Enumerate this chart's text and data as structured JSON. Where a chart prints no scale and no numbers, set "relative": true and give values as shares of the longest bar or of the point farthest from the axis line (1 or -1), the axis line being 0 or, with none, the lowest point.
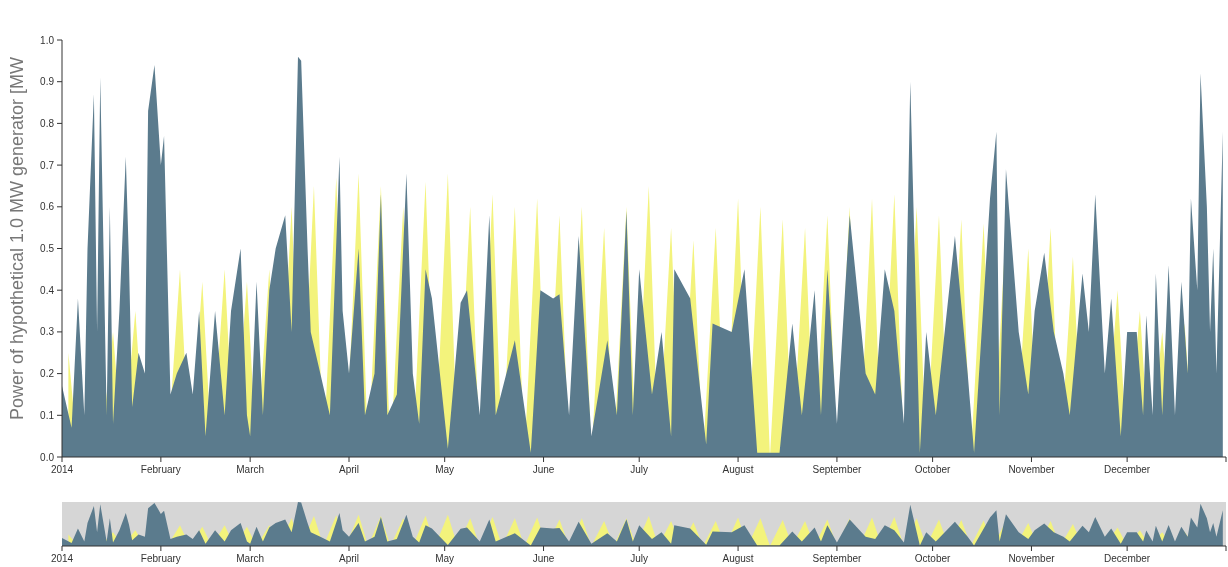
{
  "chart_data": [
    {
      "type": "area",
      "ylabel": "Power of hypothetical 1.0 MW generator [MW",
      "xlim": [
        "2014-01-01",
        "2015-01-01"
      ],
      "xticks": [
        {
          "value": "2014-01-01",
          "label": "2014"
        },
        {
          "value": "2014-02-01",
          "label": "February"
        },
        {
          "value": "2014-03-01",
          "label": "March"
        },
        {
          "value": "2014-04-01",
          "label": "April"
        },
        {
          "value": "2014-05-01",
          "label": "May"
        },
        {
          "value": "2014-06-01",
          "label": "June"
        },
        {
          "value": "2014-07-01",
          "label": "July"
        },
        {
          "value": "2014-08-01",
          "label": "August"
        },
        {
          "value": "2014-09-01",
          "label": "September"
        },
        {
          "value": "2014-10-01",
          "label": "October"
        },
        {
          "value": "2014-11-01",
          "label": "November"
        },
        {
          "value": "2014-12-01",
          "label": "December"
        },
        {
          "value": "2015-01-01",
          "label": null
        }
      ],
      "ylim": [
        0,
        1
      ],
      "yticks": [
        {
          "value": 0,
          "label": "0.0"
        },
        0.1,
        0.2,
        0.3,
        0.4,
        0.5,
        0.6,
        0.7,
        0.8,
        0.9,
        {
          "value": 1,
          "label": "1.0"
        }
      ],
      "series": [
        {
          "color": "#f3f37c",
          "x": [
            "2014-01-03",
            "2014-01-06",
            "2014-01-10",
            "2014-01-13",
            "2014-01-17",
            "2014-01-20",
            "2014-01-24",
            "2014-01-27",
            "2014-01-31",
            "2014-02-03",
            "2014-02-07",
            "2014-02-10",
            "2014-02-14",
            "2014-02-17",
            "2014-02-21",
            "2014-02-24",
            "2014-02-28",
            "2014-03-03",
            "2014-03-07",
            "2014-03-10",
            "2014-03-14",
            "2014-03-17",
            "2014-03-21",
            "2014-03-24",
            "2014-03-28",
            "2014-03-31",
            "2014-04-04",
            "2014-04-07",
            "2014-04-11",
            "2014-04-14",
            "2014-04-18",
            "2014-04-21",
            "2014-04-25",
            "2014-04-28",
            "2014-05-02",
            "2014-05-05",
            "2014-05-09",
            "2014-05-12",
            "2014-05-16",
            "2014-05-19",
            "2014-05-23",
            "2014-05-26",
            "2014-05-30",
            "2014-06-02",
            "2014-06-06",
            "2014-06-09",
            "2014-06-13",
            "2014-06-16",
            "2014-06-20",
            "2014-06-23",
            "2014-06-27",
            "2014-06-30",
            "2014-07-04",
            "2014-07-07",
            "2014-07-11",
            "2014-07-14",
            "2014-07-18",
            "2014-07-21",
            "2014-07-25",
            "2014-07-28",
            "2014-08-01",
            "2014-08-04",
            "2014-08-08",
            "2014-08-11",
            "2014-08-15",
            "2014-08-18",
            "2014-08-22",
            "2014-08-25",
            "2014-08-29",
            "2014-09-01",
            "2014-09-05",
            "2014-09-08",
            "2014-09-12",
            "2014-09-15",
            "2014-09-19",
            "2014-09-22",
            "2014-09-26",
            "2014-09-29",
            "2014-10-03",
            "2014-10-06",
            "2014-10-10",
            "2014-10-13",
            "2014-10-17",
            "2014-10-20",
            "2014-10-24",
            "2014-10-27",
            "2014-10-31",
            "2014-11-03",
            "2014-11-07",
            "2014-11-10",
            "2014-11-14",
            "2014-11-17",
            "2014-11-21",
            "2014-11-24",
            "2014-11-28",
            "2014-12-01",
            "2014-12-05",
            "2014-12-08",
            "2014-12-12",
            "2014-12-15",
            "2014-12-19",
            "2014-12-22"
          ],
          "values": [
            0.25,
            0,
            null,
            0,
            0.3,
            0,
            0.35,
            0,
            null,
            0,
            0.45,
            0,
            0.42,
            0,
            0.45,
            0,
            0.42,
            0,
            0.45,
            0,
            0.6,
            0,
            0.65,
            0,
            0.67,
            0,
            0.68,
            0,
            0.65,
            0,
            0.6,
            0,
            0.66,
            0,
            0.68,
            0,
            0.6,
            0,
            0.63,
            0,
            0.6,
            0,
            0.62,
            0,
            0.58,
            0,
            0.6,
            0,
            0.55,
            0,
            0.6,
            0,
            0.65,
            0,
            0.55,
            0,
            0.52,
            0,
            0.55,
            0,
            0.62,
            0,
            0.6,
            0,
            0.57,
            0,
            0.55,
            0,
            0.58,
            0,
            0.6,
            0,
            0.62,
            0,
            0.63,
            0,
            0.6,
            0,
            0.58,
            0,
            0.57,
            0,
            0.56,
            0,
            0.55,
            0,
            0.5,
            0,
            0.55,
            0,
            0.48,
            0,
            null,
            0,
            0.4,
            0,
            0.35,
            0,
            0.3,
            0,
            0.32,
            0
          ]
        },
        {
          "color": "#5b7b8d",
          "x": [
            "2014-01-01",
            "2014-01-04",
            "2014-01-06",
            "2014-01-08",
            "2014-01-09",
            "2014-01-11",
            "2014-01-12",
            "2014-01-13",
            "2014-01-15",
            "2014-01-16",
            "2014-01-17",
            "2014-01-19",
            "2014-01-21",
            "2014-01-22",
            "2014-01-23",
            "2014-01-25",
            "2014-01-27",
            "2014-01-28",
            "2014-01-30",
            "2014-02-01",
            "2014-02-02",
            "2014-02-04",
            "2014-02-06",
            "2014-02-09",
            "2014-02-11",
            "2014-02-13",
            "2014-02-15",
            "2014-02-18",
            "2014-02-21",
            "2014-02-23",
            "2014-02-26",
            "2014-02-28",
            "2014-03-01",
            "2014-03-03",
            "2014-03-05",
            "2014-03-07",
            "2014-03-09",
            "2014-03-12",
            "2014-03-14",
            "2014-03-16",
            "2014-03-17",
            "2014-03-19",
            "2014-03-20",
            "2014-03-23",
            "2014-03-26",
            "2014-03-29",
            "2014-03-30",
            "2014-04-01",
            "2014-04-04",
            "2014-04-06",
            "2014-04-09",
            "2014-04-11",
            "2014-04-13",
            "2014-04-16",
            "2014-04-19",
            "2014-04-21",
            "2014-04-23",
            "2014-04-25",
            "2014-04-27",
            "2014-05-02",
            "2014-05-06",
            "2014-05-08",
            "2014-05-12",
            "2014-05-15",
            "2014-05-17",
            "2014-05-23",
            "2014-05-28",
            "2014-05-31",
            "2014-06-04",
            "2014-06-06",
            "2014-06-09",
            "2014-06-12",
            "2014-06-16",
            "2014-06-21",
            "2014-06-24",
            "2014-06-27",
            "2014-06-29",
            "2014-07-01",
            "2014-07-05",
            "2014-07-08",
            "2014-07-11",
            "2014-07-12",
            "2014-07-17",
            "2014-07-22",
            "2014-07-24",
            "2014-07-30",
            "2014-08-03",
            "2014-08-07",
            "2014-08-14",
            "2014-08-18",
            "2014-08-21",
            "2014-08-25",
            "2014-08-27",
            "2014-08-29",
            "2014-09-01",
            "2014-09-05",
            "2014-09-10",
            "2014-09-13",
            "2014-09-16",
            "2014-09-19",
            "2014-09-22",
            "2014-09-24",
            "2014-09-25",
            "2014-09-27",
            "2014-09-29",
            "2014-10-02",
            "2014-10-08",
            "2014-10-12",
            "2014-10-14",
            "2014-10-19",
            "2014-10-21",
            "2014-10-22",
            "2014-10-24",
            "2014-10-28",
            "2014-10-31",
            "2014-11-02",
            "2014-11-05",
            "2014-11-08",
            "2014-11-11",
            "2014-11-13",
            "2014-11-17",
            "2014-11-19",
            "2014-11-21",
            "2014-11-24",
            "2014-11-26",
            "2014-11-29",
            "2014-12-01",
            "2014-12-04",
            "2014-12-06",
            "2014-12-07",
            "2014-12-09",
            "2014-12-10",
            "2014-12-12",
            "2014-12-14",
            "2014-12-16",
            "2014-12-18",
            "2014-12-20",
            "2014-12-21",
            "2014-12-23",
            "2014-12-24",
            "2014-12-26",
            "2014-12-27",
            "2014-12-28",
            "2014-12-29",
            "2014-12-31"
          ],
          "values": [
            0.17,
            0.07,
            0.38,
            0.1,
            0.5,
            0.87,
            0.3,
            0.91,
            0.1,
            0.6,
            0.08,
            0.35,
            0.72,
            0.47,
            0.12,
            0.25,
            0.2,
            0.83,
            0.94,
            0.7,
            0.77,
            0.15,
            0.2,
            0.25,
            0.15,
            0.35,
            0.05,
            0.35,
            0.1,
            0.35,
            0.5,
            0.1,
            0.05,
            0.42,
            0.1,
            0.4,
            0.5,
            0.58,
            0.3,
            0.96,
            0.95,
            0.5,
            0.3,
            0.2,
            0.1,
            0.72,
            0.35,
            0.2,
            0.5,
            0.1,
            0.2,
            0.63,
            0.1,
            0.15,
            0.68,
            0.2,
            0.08,
            0.45,
            0.38,
            0.02,
            0.37,
            0.4,
            0.1,
            0.58,
            0.1,
            0.28,
            0.01,
            0.4,
            0.38,
            0.39,
            0.1,
            0.53,
            0.05,
            0.28,
            0.1,
            0.59,
            0.1,
            0.45,
            0.15,
            0.3,
            0.05,
            0.45,
            0.38,
            0.03,
            0.32,
            0.3,
            0.45,
            0.01,
            0.01,
            0.32,
            0.1,
            0.4,
            0.1,
            0.45,
            0.08,
            0.58,
            0.2,
            0.15,
            0.45,
            0.35,
            0.08,
            0.9,
            0.6,
            0.01,
            0.3,
            0.1,
            0.53,
            0.2,
            0.01,
            0.62,
            0.78,
            0.1,
            0.69,
            0.3,
            0.15,
            0.35,
            0.49,
            0.3,
            0.2,
            0.1,
            0.44,
            0.3,
            0.63,
            0.2,
            0.38,
            0.05,
            0.3,
            0.3,
            0.1,
            0.34,
            0.1,
            0.44,
            0.1,
            0.46,
            0.1,
            0.42,
            0.2,
            0.62,
            0.4,
            0.92,
            0.6,
            0.3,
            0.5,
            0.2,
            0.78
          ]
        }
      ]
    },
    {
      "type": "area",
      "tick_labels": "x",
      "relative": true,
      "xlim": [
        "2014-01-01",
        "2015-01-01"
      ],
      "xticks": [
        {
          "value": "2014-01-01",
          "label": "2014"
        },
        {
          "value": "2014-02-01",
          "label": "February"
        },
        {
          "value": "2014-03-01",
          "label": "March"
        },
        {
          "value": "2014-04-01",
          "label": "April"
        },
        {
          "value": "2014-05-01",
          "label": "May"
        },
        {
          "value": "2014-06-01",
          "label": "June"
        },
        {
          "value": "2014-07-01",
          "label": "July"
        },
        {
          "value": "2014-08-01",
          "label": "August"
        },
        {
          "value": "2014-09-01",
          "label": "September"
        },
        {
          "value": "2014-10-01",
          "label": "October"
        },
        {
          "value": "2014-11-01",
          "label": "November"
        },
        {
          "value": "2014-12-01",
          "label": "December"
        },
        {
          "value": "2015-01-01",
          "label": null
        }
      ],
      "bands": [
        {
          "axis": "x",
          "from": "2014-01-01",
          "to": "2015-01-01",
          "color": "#d6d6d6"
        }
      ],
      "series": [
        {
          "color": "#f3f37c",
          "x": [
            "2014-01-03",
            "2014-01-06",
            "2014-01-10",
            "2014-01-13",
            "2014-01-17",
            "2014-01-20",
            "2014-01-24",
            "2014-01-27",
            "2014-01-31",
            "2014-02-03",
            "2014-02-07",
            "2014-02-10",
            "2014-02-14",
            "2014-02-17",
            "2014-02-21",
            "2014-02-24",
            "2014-02-28",
            "2014-03-03",
            "2014-03-07",
            "2014-03-10",
            "2014-03-14",
            "2014-03-17",
            "2014-03-21",
            "2014-03-24",
            "2014-03-28",
            "2014-03-31",
            "2014-04-04",
            "2014-04-07",
            "2014-04-11",
            "2014-04-14",
            "2014-04-18",
            "2014-04-21",
            "2014-04-25",
            "2014-04-28",
            "2014-05-02",
            "2014-05-05",
            "2014-05-09",
            "2014-05-12",
            "2014-05-16",
            "2014-05-19",
            "2014-05-23",
            "2014-05-26",
            "2014-05-30",
            "2014-06-02",
            "2014-06-06",
            "2014-06-09",
            "2014-06-13",
            "2014-06-16",
            "2014-06-20",
            "2014-06-23",
            "2014-06-27",
            "2014-06-30",
            "2014-07-04",
            "2014-07-07",
            "2014-07-11",
            "2014-07-14",
            "2014-07-18",
            "2014-07-21",
            "2014-07-25",
            "2014-07-28",
            "2014-08-01",
            "2014-08-04",
            "2014-08-08",
            "2014-08-11",
            "2014-08-15",
            "2014-08-18",
            "2014-08-22",
            "2014-08-25",
            "2014-08-29",
            "2014-09-01",
            "2014-09-05",
            "2014-09-08",
            "2014-09-12",
            "2014-09-15",
            "2014-09-19",
            "2014-09-22",
            "2014-09-26",
            "2014-09-29",
            "2014-10-03",
            "2014-10-06",
            "2014-10-10",
            "2014-10-13",
            "2014-10-17",
            "2014-10-20",
            "2014-10-24",
            "2014-10-27",
            "2014-10-31",
            "2014-11-03",
            "2014-11-07",
            "2014-11-10",
            "2014-11-14",
            "2014-11-17",
            "2014-11-21",
            "2014-11-24",
            "2014-11-28",
            "2014-12-01",
            "2014-12-05",
            "2014-12-08",
            "2014-12-12",
            "2014-12-15",
            "2014-12-19",
            "2014-12-22"
          ],
          "values": [
            0.26,
            0,
            null,
            0,
            0.31,
            0,
            0.36,
            0,
            null,
            0,
            0.47,
            0,
            0.44,
            0,
            0.47,
            0,
            0.44,
            0,
            0.47,
            0,
            0.63,
            0,
            0.68,
            0,
            0.7,
            0,
            0.71,
            0,
            0.68,
            0,
            0.63,
            0,
            0.69,
            0,
            0.71,
            0,
            0.63,
            0,
            0.66,
            0,
            0.63,
            0,
            0.65,
            0,
            0.6,
            0,
            0.63,
            0,
            0.57,
            0,
            0.63,
            0,
            0.68,
            0,
            0.57,
            0,
            0.54,
            0,
            0.57,
            0,
            0.65,
            0,
            0.63,
            0,
            0.59,
            0,
            0.57,
            0,
            0.6,
            0,
            0.63,
            0,
            0.65,
            0,
            0.66,
            0,
            0.63,
            0,
            0.6,
            0,
            0.59,
            0,
            0.58,
            0,
            0.57,
            0,
            0.52,
            0,
            0.57,
            0,
            0.5,
            0,
            null,
            0,
            0.42,
            0,
            0.36,
            0,
            0.31,
            0,
            0.33,
            0
          ]
        },
        {
          "color": "#5b7b8d",
          "x": [
            "2014-01-01",
            "2014-01-04",
            "2014-01-06",
            "2014-01-08",
            "2014-01-09",
            "2014-01-11",
            "2014-01-12",
            "2014-01-13",
            "2014-01-15",
            "2014-01-16",
            "2014-01-17",
            "2014-01-19",
            "2014-01-21",
            "2014-01-22",
            "2014-01-23",
            "2014-01-25",
            "2014-01-27",
            "2014-01-28",
            "2014-01-30",
            "2014-02-01",
            "2014-02-02",
            "2014-02-04",
            "2014-02-06",
            "2014-02-09",
            "2014-02-11",
            "2014-02-13",
            "2014-02-15",
            "2014-02-18",
            "2014-02-21",
            "2014-02-23",
            "2014-02-26",
            "2014-02-28",
            "2014-03-01",
            "2014-03-03",
            "2014-03-05",
            "2014-03-07",
            "2014-03-09",
            "2014-03-12",
            "2014-03-14",
            "2014-03-16",
            "2014-03-17",
            "2014-03-19",
            "2014-03-20",
            "2014-03-23",
            "2014-03-26",
            "2014-03-29",
            "2014-03-30",
            "2014-04-01",
            "2014-04-04",
            "2014-04-06",
            "2014-04-09",
            "2014-04-11",
            "2014-04-13",
            "2014-04-16",
            "2014-04-19",
            "2014-04-21",
            "2014-04-23",
            "2014-04-25",
            "2014-04-27",
            "2014-05-02",
            "2014-05-06",
            "2014-05-08",
            "2014-05-12",
            "2014-05-15",
            "2014-05-17",
            "2014-05-23",
            "2014-05-28",
            "2014-05-31",
            "2014-06-04",
            "2014-06-06",
            "2014-06-09",
            "2014-06-12",
            "2014-06-16",
            "2014-06-21",
            "2014-06-24",
            "2014-06-27",
            "2014-06-29",
            "2014-07-01",
            "2014-07-05",
            "2014-07-08",
            "2014-07-11",
            "2014-07-12",
            "2014-07-17",
            "2014-07-22",
            "2014-07-24",
            "2014-07-30",
            "2014-08-03",
            "2014-08-07",
            "2014-08-14",
            "2014-08-18",
            "2014-08-21",
            "2014-08-25",
            "2014-08-27",
            "2014-08-29",
            "2014-09-01",
            "2014-09-05",
            "2014-09-10",
            "2014-09-13",
            "2014-09-16",
            "2014-09-19",
            "2014-09-22",
            "2014-09-24",
            "2014-09-25",
            "2014-09-27",
            "2014-09-29",
            "2014-10-02",
            "2014-10-08",
            "2014-10-12",
            "2014-10-14",
            "2014-10-19",
            "2014-10-21",
            "2014-10-22",
            "2014-10-24",
            "2014-10-28",
            "2014-10-31",
            "2014-11-02",
            "2014-11-05",
            "2014-11-08",
            "2014-11-11",
            "2014-11-13",
            "2014-11-17",
            "2014-11-19",
            "2014-11-21",
            "2014-11-24",
            "2014-11-26",
            "2014-11-29",
            "2014-12-01",
            "2014-12-04",
            "2014-12-06",
            "2014-12-07",
            "2014-12-09",
            "2014-12-10",
            "2014-12-12",
            "2014-12-14",
            "2014-12-16",
            "2014-12-18",
            "2014-12-20",
            "2014-12-21",
            "2014-12-23",
            "2014-12-24",
            "2014-12-26",
            "2014-12-27",
            "2014-12-28",
            "2014-12-29",
            "2014-12-31"
          ],
          "values": [
            0.18,
            0.07,
            0.4,
            0.1,
            0.52,
            0.91,
            0.31,
            0.95,
            0.1,
            0.63,
            0.08,
            0.36,
            0.75,
            0.49,
            0.13,
            0.26,
            0.21,
            0.86,
            0.98,
            0.73,
            0.8,
            0.16,
            0.21,
            0.26,
            0.16,
            0.36,
            0.05,
            0.36,
            0.1,
            0.36,
            0.52,
            0.1,
            0.05,
            0.44,
            0.1,
            0.42,
            0.52,
            0.6,
            0.31,
            1,
            0.99,
            0.52,
            0.31,
            0.21,
            0.1,
            0.75,
            0.36,
            0.21,
            0.52,
            0.1,
            0.21,
            0.66,
            0.1,
            0.16,
            0.71,
            0.21,
            0.08,
            0.47,
            0.4,
            0.02,
            0.39,
            0.42,
            0.1,
            0.6,
            0.1,
            0.29,
            0.01,
            0.42,
            0.4,
            0.41,
            0.1,
            0.55,
            0.05,
            0.29,
            0.1,
            0.61,
            0.1,
            0.47,
            0.16,
            0.31,
            0.05,
            0.47,
            0.4,
            0.03,
            0.33,
            0.31,
            0.47,
            0.01,
            0.01,
            0.33,
            0.1,
            0.42,
            0.1,
            0.47,
            0.08,
            0.6,
            0.21,
            0.16,
            0.47,
            0.36,
            0.08,
            0.94,
            0.63,
            0.01,
            0.31,
            0.1,
            0.55,
            0.21,
            0.01,
            0.65,
            0.81,
            0.1,
            0.72,
            0.31,
            0.16,
            0.36,
            0.51,
            0.31,
            0.21,
            0.1,
            0.46,
            0.31,
            0.66,
            0.21,
            0.4,
            0.05,
            0.31,
            0.31,
            0.1,
            0.35,
            0.1,
            0.46,
            0.1,
            0.48,
            0.1,
            0.44,
            0.21,
            0.65,
            0.42,
            0.96,
            0.63,
            0.31,
            0.52,
            0.21,
            0.81
          ]
        }
      ]
    }
  ]
}
